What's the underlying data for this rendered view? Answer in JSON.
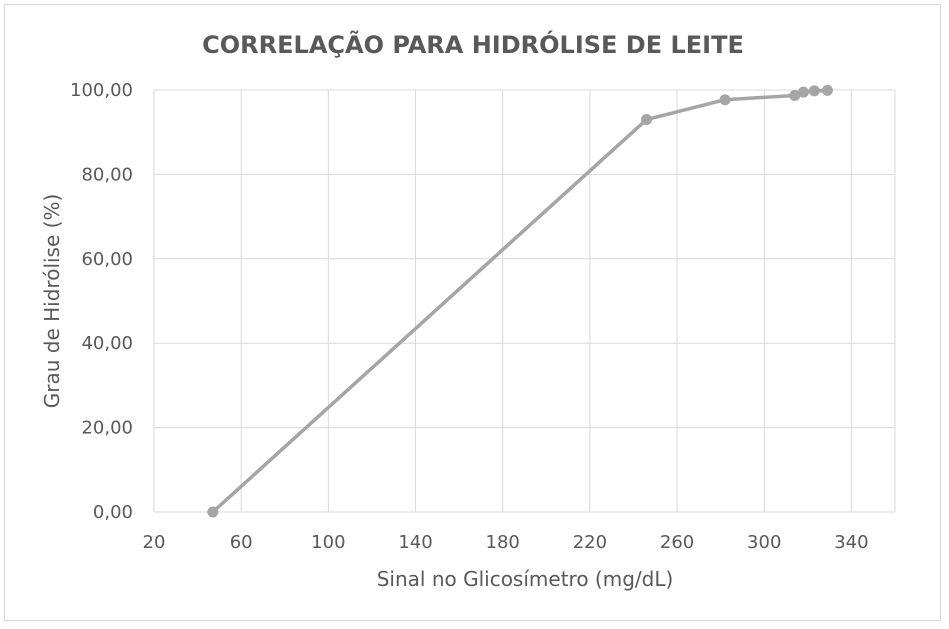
{
  "chart_data": {
    "type": "line",
    "title": "CORRELAÇÃO PARA HIDRÓLISE DE LEITE",
    "xlabel": "Sinal no Glicosímetro (mg/dL)",
    "ylabel": "Grau de Hidrólise (%)",
    "xlim": [
      20,
      360
    ],
    "ylim": [
      0,
      100
    ],
    "x_ticks": [
      20,
      60,
      100,
      140,
      180,
      220,
      260,
      300,
      340
    ],
    "y_ticks": [
      0,
      20,
      40,
      60,
      80,
      100
    ],
    "x_tick_labels": [
      "20",
      "60",
      "100",
      "140",
      "180",
      "220",
      "260",
      "300",
      "340"
    ],
    "y_tick_labels": [
      "0,00",
      "20,00",
      "40,00",
      "60,00",
      "80,00",
      "100,00"
    ],
    "grid": true,
    "series": [
      {
        "color": "#a5a5a5",
        "marker": "circle",
        "points": [
          {
            "x": 47,
            "y": 0.0
          },
          {
            "x": 246,
            "y": 93.0
          },
          {
            "x": 282,
            "y": 97.7
          },
          {
            "x": 314,
            "y": 98.7
          },
          {
            "x": 318,
            "y": 99.5
          },
          {
            "x": 323,
            "y": 99.8
          },
          {
            "x": 329,
            "y": 99.9
          }
        ]
      }
    ],
    "colors": {
      "grid": "#d9d9d9",
      "text": "#595959",
      "series": "#a5a5a5",
      "border": "#d9d9d9"
    }
  }
}
